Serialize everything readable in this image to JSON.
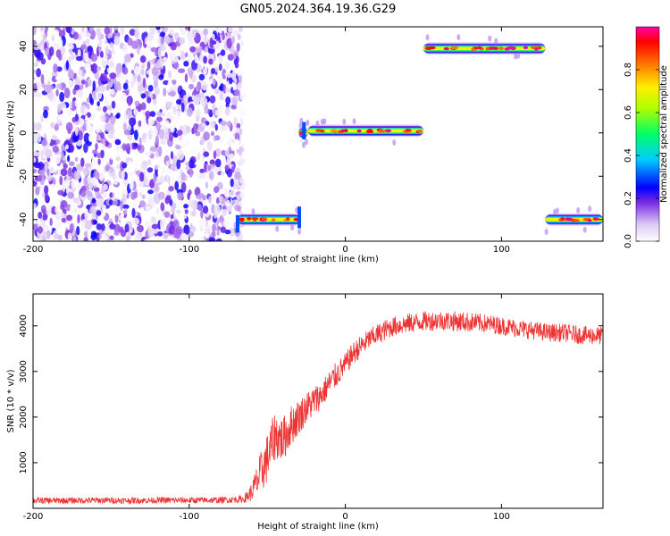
{
  "title": "GN05.2024.364.19.36.G29",
  "chart_data": [
    {
      "type": "heatmap",
      "xlabel": "Height of straight line (km)",
      "ylabel": "Frequency (Hz)",
      "xlim": [
        -200,
        165
      ],
      "ylim": [
        -50,
        49
      ],
      "x_ticks": [
        -200,
        -100,
        0,
        100
      ],
      "y_ticks": [
        -40,
        -20,
        0,
        20,
        40
      ],
      "colorbar": {
        "label": "Normalized spectral amplitude",
        "range": [
          0,
          1
        ],
        "ticks": [
          0.0,
          0.2,
          0.4,
          0.6,
          0.8
        ],
        "tick_labels": [
          "0.0",
          "0.2",
          "0.4",
          "0.6",
          "0.8"
        ]
      },
      "noise_region": {
        "x_range": [
          -200,
          -65
        ],
        "y_range": [
          -50,
          49
        ],
        "amplitude_range": [
          0.0,
          0.25
        ]
      },
      "signal_segments": [
        {
          "x_start": -69,
          "x_end": -29,
          "frequency": -40,
          "peak_amplitude": 1.0
        },
        {
          "x_start": -30,
          "x_end": -24,
          "frequency": 0,
          "peak_amplitude": 1.0
        },
        {
          "x_start": -24,
          "x_end": 50,
          "frequency": 1,
          "peak_amplitude": 1.0
        },
        {
          "x_start": 50,
          "x_end": 128,
          "frequency": 39,
          "peak_amplitude": 1.0
        },
        {
          "x_start": 128,
          "x_end": 165,
          "frequency": -40,
          "peak_amplitude": 1.0
        }
      ]
    },
    {
      "type": "line",
      "xlabel": "Height of straight line (km)",
      "ylabel": "SNR (10 * v/v)",
      "xlim": [
        -200,
        165
      ],
      "ylim": [
        0,
        4700
      ],
      "x_ticks": [
        -200,
        -100,
        0,
        100
      ],
      "y_ticks": [
        1000,
        2000,
        3000,
        4000
      ],
      "series": [
        {
          "color": "#ee3333",
          "x": [
            -200,
            -180,
            -160,
            -140,
            -120,
            -100,
            -80,
            -65,
            -60,
            -55,
            -50,
            -45,
            -40,
            -35,
            -30,
            -25,
            -20,
            -15,
            -10,
            -5,
            0,
            5,
            10,
            15,
            20,
            25,
            30,
            40,
            50,
            60,
            70,
            80,
            90,
            100,
            110,
            120,
            130,
            140,
            150,
            165
          ],
          "y": [
            170,
            170,
            175,
            170,
            175,
            175,
            180,
            200,
            350,
            700,
            1100,
            1600,
            1500,
            1800,
            2000,
            2200,
            2350,
            2500,
            2750,
            2950,
            3150,
            3400,
            3550,
            3700,
            3800,
            3900,
            3980,
            4050,
            4100,
            4120,
            4100,
            4080,
            4050,
            4000,
            3950,
            3900,
            3850,
            3850,
            3800,
            3780
          ],
          "noise_amplitude": [
            70,
            70,
            70,
            70,
            70,
            70,
            70,
            80,
            200,
            450,
            550,
            550,
            500,
            450,
            400,
            350,
            350,
            300,
            300,
            280,
            250,
            250,
            250,
            230,
            230,
            230,
            220,
            220,
            220,
            220,
            220,
            220,
            200,
            200,
            200,
            200,
            200,
            200,
            200,
            200
          ]
        }
      ]
    }
  ]
}
